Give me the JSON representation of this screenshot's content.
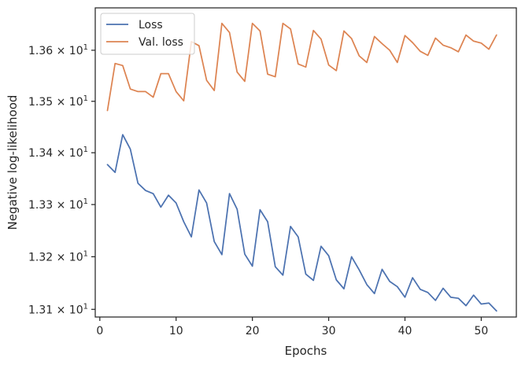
{
  "chart_data": {
    "type": "line",
    "title": "",
    "xlabel": "Epochs",
    "ylabel": "Negative log-likelihood",
    "xlim": [
      -0.6,
      54.6
    ],
    "ylim": [
      13.0855,
      13.6836
    ],
    "yscale": "log",
    "grid": false,
    "legend_position": "top-left",
    "x_ticks": [
      {
        "value": 0,
        "label": "0"
      },
      {
        "value": 10,
        "label": "10"
      },
      {
        "value": 20,
        "label": "20"
      },
      {
        "value": 30,
        "label": "30"
      },
      {
        "value": 40,
        "label": "40"
      },
      {
        "value": 50,
        "label": "50"
      }
    ],
    "y_ticks": [
      {
        "value": 13.1,
        "mantissa": "1.31",
        "times": "×",
        "base": "10",
        "exp": "1"
      },
      {
        "value": 13.2,
        "mantissa": "1.32",
        "times": "×",
        "base": "10",
        "exp": "1"
      },
      {
        "value": 13.3,
        "mantissa": "1.33",
        "times": "×",
        "base": "10",
        "exp": "1"
      },
      {
        "value": 13.4,
        "mantissa": "1.34",
        "times": "×",
        "base": "10",
        "exp": "1"
      },
      {
        "value": 13.5,
        "mantissa": "1.35",
        "times": "×",
        "base": "10",
        "exp": "1"
      },
      {
        "value": 13.6,
        "mantissa": "1.36",
        "times": "×",
        "base": "10",
        "exp": "1"
      }
    ],
    "x": [
      1,
      2,
      3,
      4,
      5,
      6,
      7,
      8,
      9,
      10,
      11,
      12,
      13,
      14,
      15,
      16,
      17,
      18,
      19,
      20,
      21,
      22,
      23,
      24,
      25,
      26,
      27,
      28,
      29,
      30,
      31,
      32,
      33,
      34,
      35,
      36,
      37,
      38,
      39,
      40,
      41,
      42,
      43,
      44,
      45,
      46,
      47,
      48,
      49,
      50,
      51,
      52
    ],
    "series": [
      {
        "name": "Loss",
        "color": "#4c72b0",
        "values": [
          13.377,
          13.362,
          13.435,
          13.407,
          13.341,
          13.327,
          13.321,
          13.295,
          13.318,
          13.303,
          13.267,
          13.238,
          13.328,
          13.303,
          13.229,
          13.204,
          13.321,
          13.291,
          13.205,
          13.182,
          13.29,
          13.267,
          13.181,
          13.165,
          13.258,
          13.238,
          13.167,
          13.155,
          13.22,
          13.202,
          13.156,
          13.139,
          13.2,
          13.175,
          13.147,
          13.13,
          13.176,
          13.153,
          13.143,
          13.123,
          13.16,
          13.138,
          13.132,
          13.117,
          13.14,
          13.123,
          13.121,
          13.107,
          13.127,
          13.11,
          13.112,
          13.097
        ]
      },
      {
        "name": "Val. loss",
        "color": "#dd8452",
        "values": [
          13.482,
          13.574,
          13.57,
          13.524,
          13.519,
          13.519,
          13.508,
          13.554,
          13.554,
          13.519,
          13.501,
          13.617,
          13.609,
          13.541,
          13.521,
          13.653,
          13.635,
          13.557,
          13.539,
          13.653,
          13.638,
          13.553,
          13.548,
          13.653,
          13.642,
          13.573,
          13.567,
          13.639,
          13.622,
          13.571,
          13.56,
          13.638,
          13.623,
          13.589,
          13.576,
          13.627,
          13.613,
          13.6,
          13.576,
          13.629,
          13.615,
          13.598,
          13.59,
          13.624,
          13.61,
          13.605,
          13.597,
          13.63,
          13.618,
          13.614,
          13.602,
          13.63
        ]
      }
    ]
  }
}
